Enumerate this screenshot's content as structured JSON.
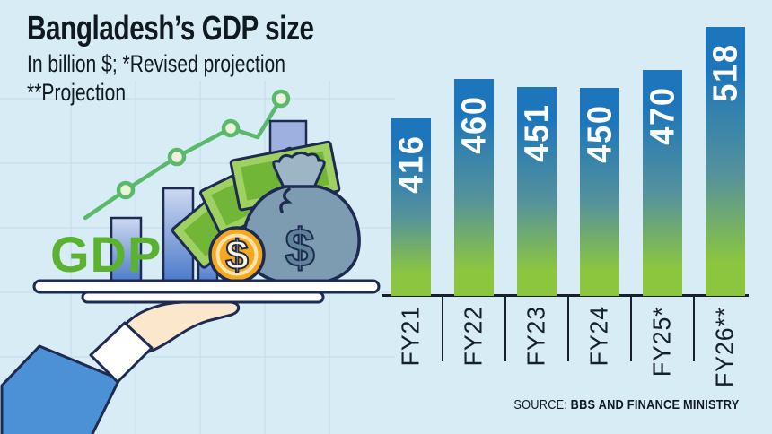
{
  "header": {
    "title": "Bangladesh’s GDP size",
    "subtitle_line1": "In billion $; *Revised projection",
    "subtitle_line2": "**Projection"
  },
  "illustration": {
    "gdp_label": "GDP",
    "coin_symbol": "$",
    "bag_symbol": "$",
    "icons": [
      "trend-line-icon",
      "mini-bar-chart-icon",
      "dollar-bills-icon",
      "money-bag-icon",
      "dollar-coin-icon",
      "serving-tray-icon",
      "hand-icon"
    ]
  },
  "chart_data": {
    "type": "bar",
    "title": "Bangladesh’s GDP size",
    "unit": "billion $",
    "categories": [
      "FY21",
      "FY22",
      "FY23",
      "FY24",
      "FY25*",
      "FY26**"
    ],
    "values": [
      416,
      460,
      451,
      450,
      470,
      518
    ],
    "footnotes": [
      {
        "marker": "*",
        "meaning": "Revised projection"
      },
      {
        "marker": "**",
        "meaning": "Projection"
      }
    ],
    "value_label_position": "inside-top-rotated",
    "x_label_rotation": -90,
    "gridlines": false,
    "legend": "none",
    "colors": {
      "bar_top": "#1d76bb",
      "bar_mid": "#55929b",
      "bar_bottom": "#8cc63f",
      "value_label": "#ffffff",
      "axis": "#16202c",
      "category_label": "#16202c",
      "background": "#d8ecf6"
    }
  },
  "source": {
    "prefix": "SOURCE:",
    "text": "BBS AND FINANCE MINISTRY"
  }
}
